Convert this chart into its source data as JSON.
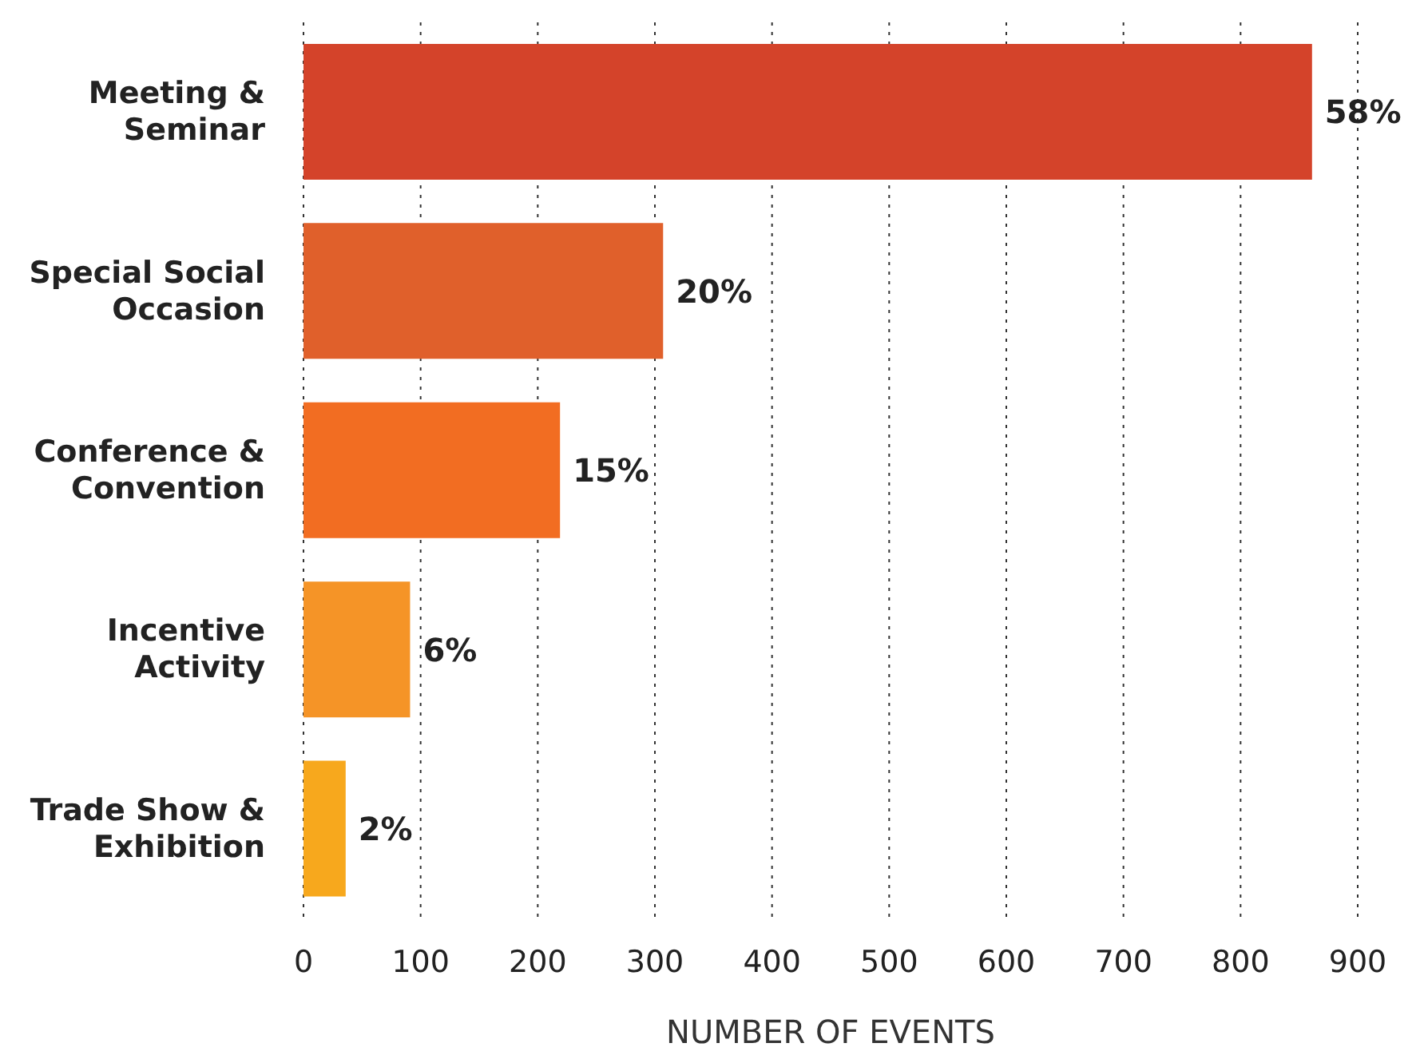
{
  "chart_data": {
    "type": "bar",
    "orientation": "horizontal",
    "xlabel": "NUMBER OF EVENTS",
    "categories": [
      "Meeting & Seminar",
      "Special Social Occasion",
      "Conference & Convention",
      "Incentive Activity",
      "Trade Show & Exhibition"
    ],
    "values": [
      861,
      307,
      219,
      91,
      36
    ],
    "colors": [
      "#d4432a",
      "#e0602b",
      "#f26d22",
      "#f59427",
      "#f7a81d"
    ],
    "annotations": [
      {
        "text": "58%",
        "x": 861,
        "y": "Meeting & Seminar"
      },
      {
        "text": "20%",
        "x": 307,
        "y": "Special Social Occasion"
      },
      {
        "text": "15%",
        "x": 219,
        "y": "Conference & Convention"
      },
      {
        "text": "6%",
        "x": 91,
        "y": "Incentive Activity"
      },
      {
        "text": "2%",
        "x": 36,
        "y": "Trade Show & Exhibition"
      }
    ],
    "xlim": [
      0,
      900
    ],
    "xticks": [
      0,
      100,
      200,
      300,
      400,
      500,
      600,
      700,
      800,
      900
    ],
    "grid": "x"
  }
}
